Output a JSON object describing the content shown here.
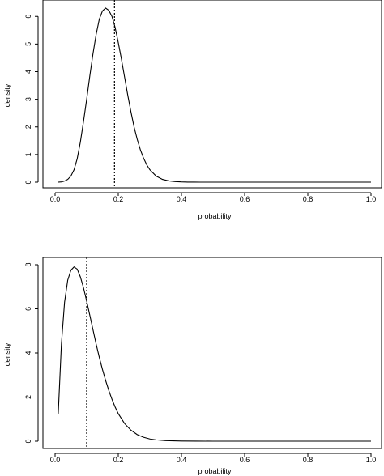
{
  "chart_data": [
    {
      "type": "line",
      "xlabel": "probability",
      "ylabel": "density",
      "xlim": [
        0.0,
        1.0
      ],
      "ylim": [
        0,
        6.3
      ],
      "x_ticks": [
        "0.0",
        "0.2",
        "0.4",
        "0.6",
        "0.8",
        "1.0"
      ],
      "y_ticks": [
        "0",
        "1",
        "2",
        "3",
        "4",
        "5",
        "6"
      ],
      "grid": false,
      "series": [
        {
          "line_style": "solid",
          "x": [
            0.01,
            0.02,
            0.03,
            0.04,
            0.05,
            0.06,
            0.07,
            0.08,
            0.09,
            0.1,
            0.11,
            0.12,
            0.13,
            0.14,
            0.15,
            0.16,
            0.17,
            0.18,
            0.19,
            0.2,
            0.21,
            0.22,
            0.23,
            0.24,
            0.25,
            0.26,
            0.27,
            0.28,
            0.29,
            0.3,
            0.32,
            0.34,
            0.36,
            0.38,
            0.4,
            0.42,
            0.44,
            0.46,
            0.48,
            0.5,
            0.55,
            0.6,
            0.7,
            0.8,
            0.9,
            1.0
          ],
          "y": [
            0.0,
            0.01,
            0.04,
            0.1,
            0.22,
            0.45,
            0.85,
            1.45,
            2.2,
            3.0,
            3.85,
            4.65,
            5.35,
            5.9,
            6.2,
            6.3,
            6.22,
            6.0,
            5.6,
            5.05,
            4.45,
            3.8,
            3.15,
            2.55,
            2.0,
            1.55,
            1.17,
            0.87,
            0.63,
            0.45,
            0.22,
            0.1,
            0.045,
            0.02,
            0.008,
            0.003,
            0.001,
            0.0004,
            0.0001,
            0.0,
            0.0,
            0.0,
            0.0,
            0.0,
            0.0,
            0.0
          ]
        }
      ],
      "reference_line": {
        "x": 0.188,
        "line_style": "dotted"
      }
    },
    {
      "type": "line",
      "xlabel": "probability",
      "ylabel": "density",
      "xlim": [
        0.0,
        1.0
      ],
      "ylim": [
        0,
        8
      ],
      "x_ticks": [
        "0.0",
        "0.2",
        "0.4",
        "0.6",
        "0.8",
        "1.0"
      ],
      "y_ticks": [
        "0",
        "2",
        "4",
        "6",
        "8"
      ],
      "grid": false,
      "series": [
        {
          "line_style": "solid",
          "x": [
            0.01,
            0.02,
            0.03,
            0.04,
            0.05,
            0.06,
            0.07,
            0.08,
            0.09,
            0.1,
            0.11,
            0.12,
            0.13,
            0.14,
            0.15,
            0.16,
            0.17,
            0.18,
            0.19,
            0.2,
            0.22,
            0.24,
            0.26,
            0.28,
            0.3,
            0.32,
            0.35,
            0.4,
            0.45,
            0.5,
            0.6,
            0.7,
            0.8,
            0.9,
            1.0
          ],
          "y": [
            1.25,
            4.4,
            6.3,
            7.3,
            7.75,
            7.9,
            7.8,
            7.45,
            6.95,
            6.35,
            5.7,
            5.05,
            4.4,
            3.8,
            3.25,
            2.75,
            2.3,
            1.9,
            1.55,
            1.25,
            0.8,
            0.5,
            0.3,
            0.18,
            0.1,
            0.06,
            0.025,
            0.006,
            0.001,
            0.0,
            0.0,
            0.0,
            0.0,
            0.0,
            0.0
          ]
        }
      ],
      "reference_line": {
        "x": 0.1,
        "line_style": "dotted"
      }
    }
  ]
}
